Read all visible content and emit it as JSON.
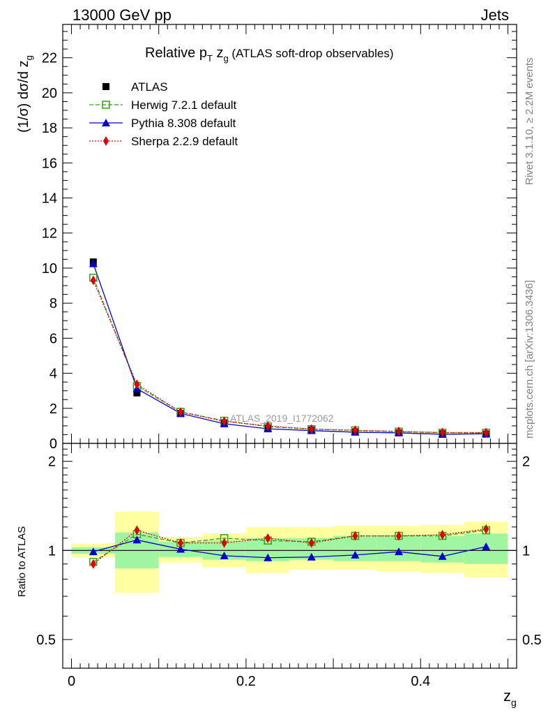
{
  "header": {
    "left": "13000 GeV pp",
    "right": "Jets"
  },
  "side_labels": {
    "rivet": "Rivet 3.1.10, ≥ 2.2M events",
    "mcplots": "mcplots.cern.ch [arXiv:1306.3436]"
  },
  "watermark": "ATLAS_2019_I1772062",
  "title": {
    "main": "Relative p",
    "main_sub": "T",
    "var": " z",
    "var_sub": "g",
    "rest": " (ATLAS soft-drop observables)"
  },
  "ylabel": {
    "text": "(1/σ) dσ/d z",
    "sub": "g"
  },
  "ratio_ylabel": "Ratio to ATLAS",
  "xlabel": {
    "text": "z",
    "sub": "g"
  },
  "colors": {
    "atlas": "#000000",
    "herwig": "#3a9a1a",
    "pythia": "#0000cc",
    "sherpa": "#e00000",
    "band_inner": "#a0f5a0",
    "band_outer": "#ffffa0"
  },
  "chart_data": {
    "type": "line",
    "x_bins": [
      [
        0.0,
        0.05
      ],
      [
        0.05,
        0.1
      ],
      [
        0.1,
        0.15
      ],
      [
        0.15,
        0.2
      ],
      [
        0.2,
        0.25
      ],
      [
        0.25,
        0.3
      ],
      [
        0.3,
        0.35
      ],
      [
        0.35,
        0.4
      ],
      [
        0.4,
        0.45
      ],
      [
        0.45,
        0.5
      ]
    ],
    "x": [
      0.025,
      0.075,
      0.125,
      0.175,
      0.225,
      0.275,
      0.325,
      0.375,
      0.425,
      0.475
    ],
    "xlim": [
      -0.01,
      0.51
    ],
    "xticks": [
      0,
      0.2,
      0.4
    ],
    "xtick_labels": [
      "0",
      "0.2",
      "0.4"
    ],
    "main_ylim": [
      0,
      23.9
    ],
    "main_yticks": [
      0,
      2,
      4,
      6,
      8,
      10,
      12,
      14,
      16,
      18,
      20,
      22
    ],
    "main_ytick_labels": [
      "0",
      "2",
      "4",
      "6",
      "8",
      "10",
      "12",
      "14",
      "16",
      "18",
      "20",
      "22"
    ],
    "ratio_ylim": [
      0.4,
      2.3
    ],
    "ratio_yscale": "log",
    "ratio_yticks": [
      0.5,
      1,
      2
    ],
    "ratio_ytick_labels": [
      "0.5",
      "1",
      "2"
    ],
    "legend_position": "top-left",
    "series": [
      {
        "name": "ATLAS",
        "key": "atlas",
        "marker": "square-filled",
        "style": "none",
        "values": [
          10.35,
          2.88,
          1.7,
          1.17,
          0.88,
          0.76,
          0.66,
          0.6,
          0.55,
          0.53
        ]
      },
      {
        "name": "Herwig 7.2.1 default",
        "key": "herwig",
        "marker": "square-open",
        "style": "dashed",
        "values": [
          9.45,
          3.27,
          1.8,
          1.29,
          0.96,
          0.81,
          0.74,
          0.67,
          0.61,
          0.6
        ]
      },
      {
        "name": "Pythia 8.308 default",
        "key": "pythia",
        "marker": "triangle",
        "style": "solid",
        "values": [
          10.25,
          3.12,
          1.71,
          1.12,
          0.83,
          0.73,
          0.64,
          0.6,
          0.52,
          0.55
        ]
      },
      {
        "name": "Sherpa 2.2.9 default",
        "key": "sherpa",
        "marker": "diamond",
        "style": "dotted",
        "values": [
          9.3,
          3.37,
          1.79,
          1.26,
          0.99,
          0.82,
          0.75,
          0.68,
          0.62,
          0.62
        ]
      }
    ],
    "ratio_series": [
      {
        "key": "herwig",
        "values": [
          0.915,
          1.135,
          1.06,
          1.1,
          1.08,
          1.07,
          1.12,
          1.12,
          1.12,
          1.17
        ]
      },
      {
        "key": "pythia",
        "values": [
          0.99,
          1.085,
          1.01,
          0.96,
          0.945,
          0.95,
          0.965,
          0.99,
          0.955,
          1.03
        ]
      },
      {
        "key": "sherpa",
        "values": [
          0.9,
          1.17,
          1.06,
          1.06,
          1.1,
          1.06,
          1.12,
          1.12,
          1.13,
          1.18
        ]
      }
    ],
    "ratio_band_inner": [
      [
        0.975,
        1.025
      ],
      [
        0.87,
        1.15
      ],
      [
        0.95,
        1.07
      ],
      [
        0.93,
        1.08
      ],
      [
        0.92,
        1.1
      ],
      [
        0.93,
        1.1
      ],
      [
        0.92,
        1.12
      ],
      [
        0.92,
        1.12
      ],
      [
        0.91,
        1.12
      ],
      [
        0.9,
        1.14
      ]
    ],
    "ratio_band_outer": [
      [
        0.95,
        1.055
      ],
      [
        0.72,
        1.35
      ],
      [
        0.91,
        1.11
      ],
      [
        0.88,
        1.14
      ],
      [
        0.84,
        1.2
      ],
      [
        0.86,
        1.2
      ],
      [
        0.86,
        1.21
      ],
      [
        0.85,
        1.21
      ],
      [
        0.84,
        1.22
      ],
      [
        0.81,
        1.25
      ]
    ]
  }
}
